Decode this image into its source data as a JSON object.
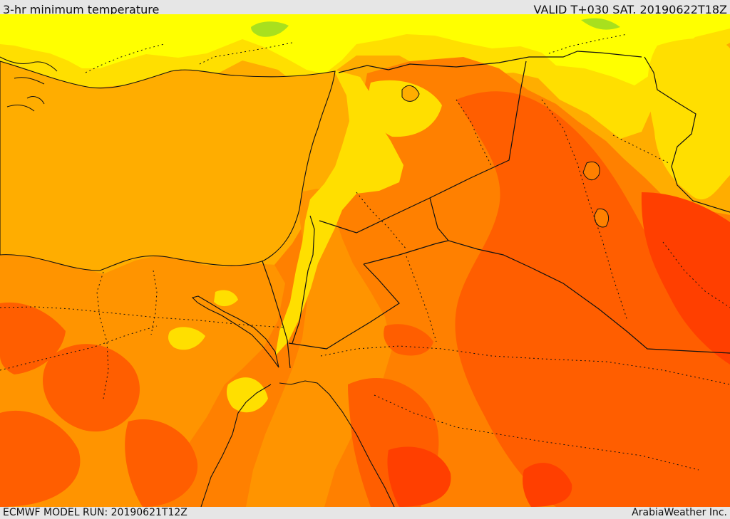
{
  "header": {
    "title": "3-hr minimum temperature",
    "valid_time": "VALID T+030 SAT. 20190622T18Z"
  },
  "footer": {
    "model_run": "ECMWF MODEL RUN: 20190621T12Z",
    "provider": "ArabiaWeather Inc."
  },
  "colors": {
    "sea_and_warm_base": "#ffad00",
    "light_orange": "#ff9400",
    "orange": "#ff8000",
    "dark_orange": "#ff5e00",
    "red_orange": "#ff3f00",
    "yellow": "#ffdf00",
    "pale_yellow": "#ffff00",
    "green_hint": "#a8e01e",
    "boundary": "#111111"
  }
}
